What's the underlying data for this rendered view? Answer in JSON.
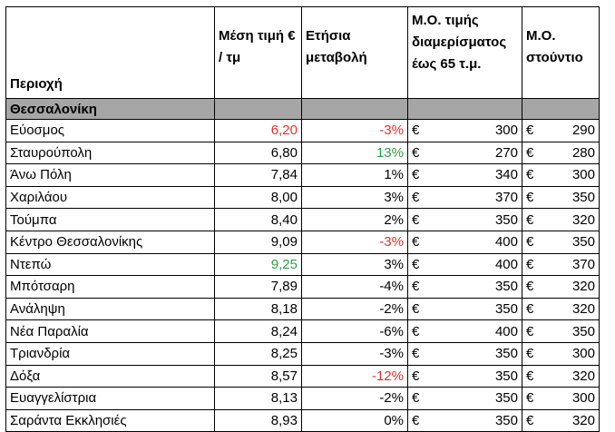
{
  "headers": {
    "region": "Περιοχή",
    "avg_price": "Μέση τιμή € / τμ",
    "annual_change": "Ετήσια μεταβολή",
    "avg_rent_apartment": "Μ.Ο. τιμής διαμερίσματος έως 65 τ.μ.",
    "avg_rent_studio": "Μ.Ο. στούντιο"
  },
  "section": "Θεσσαλονίκη",
  "currency": "€",
  "colors": {
    "red": "#e03131",
    "green": "#2f9e44",
    "section_bg": "#a6a6a6"
  },
  "rows": [
    {
      "region": "Εύοσμος",
      "price": "6,20",
      "price_color": "red",
      "change": "-3%",
      "change_color": "red",
      "apartment": "300",
      "studio": "290"
    },
    {
      "region": "Σταυρούπολη",
      "price": "6,80",
      "price_color": "",
      "change": "13%",
      "change_color": "green",
      "apartment": "270",
      "studio": "280"
    },
    {
      "region": "Άνω Πόλη",
      "price": "7,84",
      "price_color": "",
      "change": "1%",
      "change_color": "",
      "apartment": "340",
      "studio": "300"
    },
    {
      "region": "Χαριλάου",
      "price": "8,00",
      "price_color": "",
      "change": "3%",
      "change_color": "",
      "apartment": "370",
      "studio": "350"
    },
    {
      "region": "Τούμπα",
      "price": "8,40",
      "price_color": "",
      "change": "2%",
      "change_color": "",
      "apartment": "350",
      "studio": "320"
    },
    {
      "region": "Κέντρο Θεσσαλονίκης",
      "price": "9,09",
      "price_color": "",
      "change": "-3%",
      "change_color": "red",
      "apartment": "400",
      "studio": "350"
    },
    {
      "region": "Ντεπώ",
      "price": "9,25",
      "price_color": "green",
      "change": "3%",
      "change_color": "",
      "apartment": "400",
      "studio": "370"
    },
    {
      "region": "Μπότσαρη",
      "price": "7,89",
      "price_color": "",
      "change": "-4%",
      "change_color": "",
      "apartment": "350",
      "studio": "320"
    },
    {
      "region": "Ανάληψη",
      "price": "8,18",
      "price_color": "",
      "change": "-2%",
      "change_color": "",
      "apartment": "350",
      "studio": "320"
    },
    {
      "region": "Νέα Παραλία",
      "price": "8,24",
      "price_color": "",
      "change": "-6%",
      "change_color": "",
      "apartment": "400",
      "studio": "350"
    },
    {
      "region": "Τριανδρία",
      "price": "8,25",
      "price_color": "",
      "change": "-3%",
      "change_color": "",
      "apartment": "350",
      "studio": "300"
    },
    {
      "region": "Δόξα",
      "price": "8,57",
      "price_color": "",
      "change": "-12%",
      "change_color": "red",
      "apartment": "350",
      "studio": "320"
    },
    {
      "region": "Ευαγγελίστρια",
      "price": "8,13",
      "price_color": "",
      "change": "-2%",
      "change_color": "",
      "apartment": "350",
      "studio": "300"
    },
    {
      "region": "Σαράντα Εκκλησιές",
      "price": "8,93",
      "price_color": "",
      "change": "0%",
      "change_color": "",
      "apartment": "350",
      "studio": "320"
    }
  ]
}
